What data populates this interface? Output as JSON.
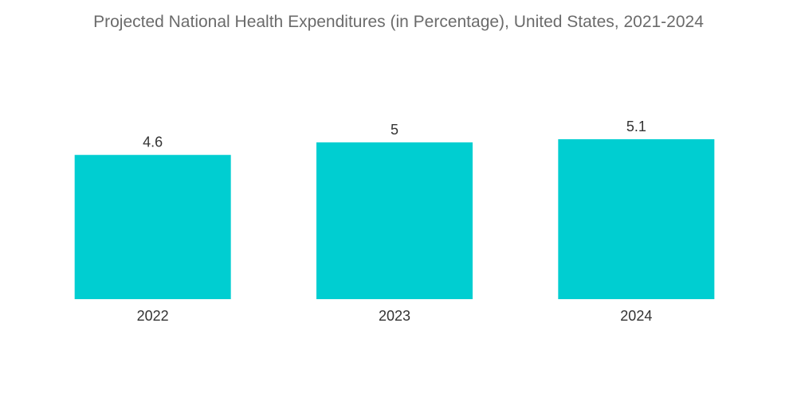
{
  "chart_data": {
    "type": "bar",
    "title": "Projected National Health Expenditures (in Percentage), United States, 2021-2024",
    "categories": [
      "2022",
      "2023",
      "2024"
    ],
    "values": [
      4.6,
      5,
      5.1
    ],
    "value_labels": [
      "4.6",
      "5",
      "5.1"
    ],
    "xlabel": "",
    "ylabel": "",
    "ylim": [
      0,
      5.1
    ],
    "grid": false,
    "legend": "none",
    "colors": {
      "bar": "#00CED1",
      "title": "#6b6b6b",
      "text": "#333333"
    }
  }
}
